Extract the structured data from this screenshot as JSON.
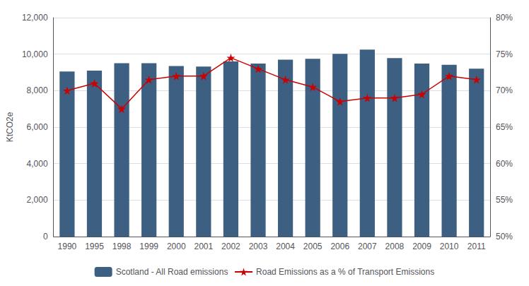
{
  "chart_data": {
    "type": "bar",
    "categories": [
      "1990",
      "1995",
      "1998",
      "1999",
      "2000",
      "2001",
      "2002",
      "2003",
      "2004",
      "2005",
      "2006",
      "2007",
      "2008",
      "2009",
      "2010",
      "2011"
    ],
    "series": [
      {
        "name": "Scotland - All Road emissions",
        "type": "bar",
        "color": "#3c5f82",
        "values": [
          9050,
          9100,
          9500,
          9500,
          9350,
          9320,
          9600,
          9480,
          9700,
          9750,
          10020,
          10250,
          9780,
          9480,
          9420,
          9200
        ]
      },
      {
        "name": "Road Emissions as a % of Transport Emissions",
        "type": "line",
        "axis": "y2",
        "color": "#cc0000",
        "marker": "star",
        "values": [
          70.0,
          71.0,
          67.5,
          71.5,
          72.0,
          72.0,
          74.5,
          73.0,
          71.5,
          70.5,
          68.5,
          69.0,
          69.0,
          69.5,
          72.0,
          71.5
        ]
      }
    ],
    "ylabel": "KtCO2e",
    "ylim": [
      0,
      12000
    ],
    "yticks": [
      0,
      {
        "value": 2000,
        "label": "2,000"
      },
      {
        "value": 4000,
        "label": "4,000"
      },
      {
        "value": 6000,
        "label": "6,000"
      },
      {
        "value": 8000,
        "label": "8,000"
      },
      {
        "value": 10000,
        "label": "10,000"
      },
      {
        "value": 12000,
        "label": "12,000"
      }
    ],
    "y2lim": [
      50,
      80
    ],
    "y2ticks": [
      {
        "value": 50,
        "label": "50%"
      },
      {
        "value": 55,
        "label": "55%"
      },
      {
        "value": 60,
        "label": "60%"
      },
      {
        "value": 65,
        "label": "65%"
      },
      {
        "value": 70,
        "label": "70%"
      },
      {
        "value": 75,
        "label": "75%"
      },
      {
        "value": 80,
        "label": "80%"
      }
    ],
    "grid": true,
    "legend": "bottom"
  }
}
